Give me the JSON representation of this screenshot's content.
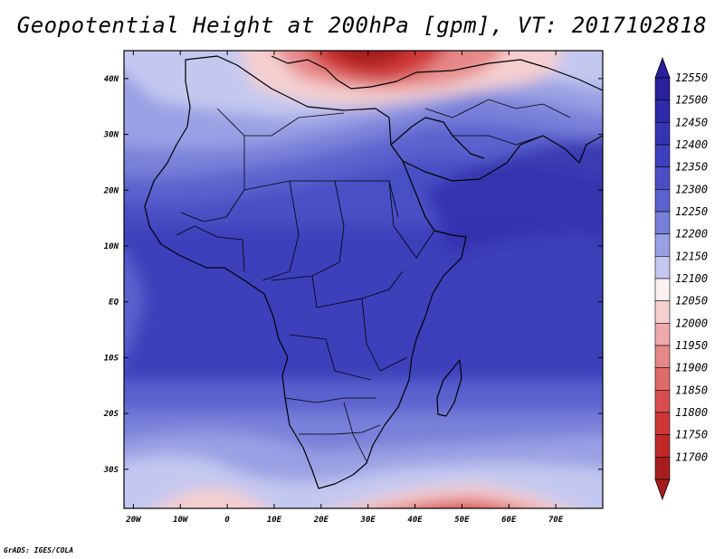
{
  "title": "Geopotential Height at 200hPa [gpm], VT: 2017102818",
  "credit": "GrADS: IGES/COLA",
  "map": {
    "lon_range": [
      -22,
      80
    ],
    "lat_range": [
      -37,
      45
    ],
    "lat_ticks": [
      {
        "value": 40,
        "label": "40N"
      },
      {
        "value": 30,
        "label": "30N"
      },
      {
        "value": 20,
        "label": "20N"
      },
      {
        "value": 10,
        "label": "10N"
      },
      {
        "value": 0,
        "label": "EQ"
      },
      {
        "value": -10,
        "label": "10S"
      },
      {
        "value": -20,
        "label": "20S"
      },
      {
        "value": -30,
        "label": "30S"
      }
    ],
    "lon_ticks": [
      {
        "value": -20,
        "label": "20W"
      },
      {
        "value": -10,
        "label": "10W"
      },
      {
        "value": 0,
        "label": "0"
      },
      {
        "value": 10,
        "label": "10E"
      },
      {
        "value": 20,
        "label": "20E"
      },
      {
        "value": 30,
        "label": "30E"
      },
      {
        "value": 40,
        "label": "40E"
      },
      {
        "value": 50,
        "label": "50E"
      },
      {
        "value": 60,
        "label": "60E"
      },
      {
        "value": 70,
        "label": "70E"
      }
    ]
  },
  "colorbar": {
    "levels": [
      {
        "label": "12550",
        "color": "#2a1f9c"
      },
      {
        "label": "12500",
        "color": "#2e2aa8"
      },
      {
        "label": "12450",
        "color": "#3535b3"
      },
      {
        "label": "12400",
        "color": "#3d40bb"
      },
      {
        "label": "12350",
        "color": "#4a50c4"
      },
      {
        "label": "12300",
        "color": "#5a62cd"
      },
      {
        "label": "12250",
        "color": "#7880d9"
      },
      {
        "label": "12200",
        "color": "#9aa0e4"
      },
      {
        "label": "12150",
        "color": "#c4c8f0"
      },
      {
        "label": "12100",
        "color": "#fbf1f1"
      },
      {
        "label": "12050",
        "color": "#f5cfcf"
      },
      {
        "label": "12000",
        "color": "#eeaaaa"
      },
      {
        "label": "11950",
        "color": "#e68888"
      },
      {
        "label": "11900",
        "color": "#df6a6a"
      },
      {
        "label": "11850",
        "color": "#d84e4e"
      },
      {
        "label": "11800",
        "color": "#cf3737"
      },
      {
        "label": "11750",
        "color": "#c02828"
      },
      {
        "label": "11700",
        "color": "#a71d1d"
      }
    ]
  }
}
